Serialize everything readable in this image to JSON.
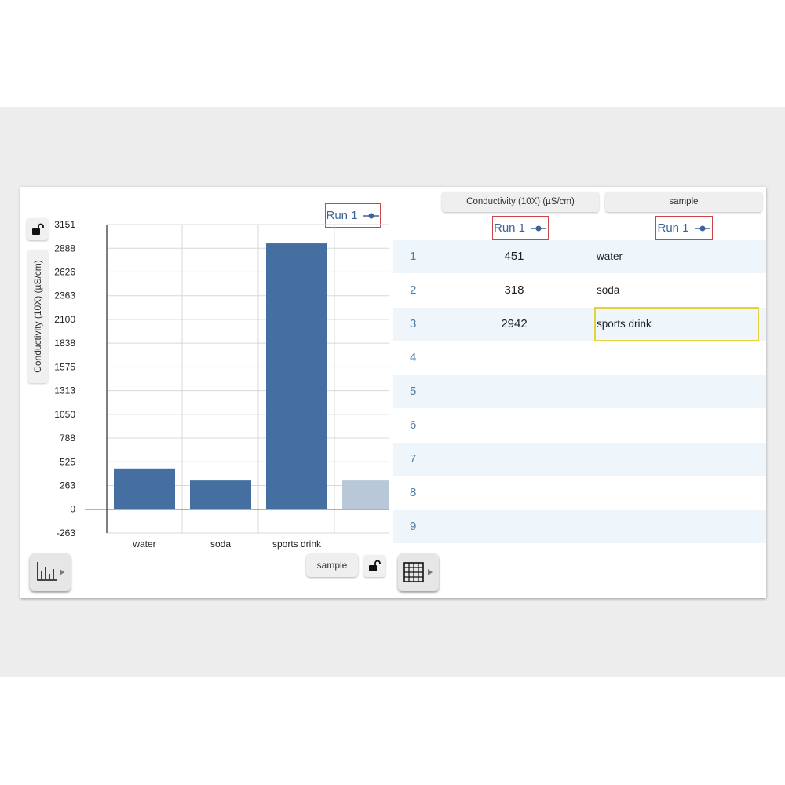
{
  "graph": {
    "y_axis_label": "Conductivity (10X) (µS/cm)",
    "run_label": "Run 1",
    "x_axis_button": "sample"
  },
  "chart_data": {
    "type": "bar",
    "categories": [
      "water",
      "soda",
      "sports drink"
    ],
    "series": [
      {
        "values": [
          451,
          318,
          2942
        ]
      }
    ],
    "partial_bar_value": 318,
    "yticks": [
      3151,
      2888,
      2626,
      2363,
      2100,
      1838,
      1575,
      1313,
      1050,
      788,
      525,
      263,
      0,
      -263
    ],
    "ylim": [
      -263,
      3151
    ],
    "grid": true,
    "bar_color": "#456fa0",
    "partial_bar_color": "#b9c8d8"
  },
  "table": {
    "columns": [
      {
        "header": "Conductivity (10X) (µS/cm)",
        "run_label": "Run 1"
      },
      {
        "header": "sample",
        "run_label": "Run 1"
      }
    ],
    "rows": [
      {
        "num": "1",
        "value": "451",
        "sample": "water"
      },
      {
        "num": "2",
        "value": "318",
        "sample": "soda"
      },
      {
        "num": "3",
        "value": "2942",
        "sample": "sports drink"
      },
      {
        "num": "4",
        "value": "",
        "sample": ""
      },
      {
        "num": "5",
        "value": "",
        "sample": ""
      },
      {
        "num": "6",
        "value": "",
        "sample": ""
      },
      {
        "num": "7",
        "value": "",
        "sample": ""
      },
      {
        "num": "8",
        "value": "",
        "sample": ""
      },
      {
        "num": "9",
        "value": "",
        "sample": ""
      }
    ]
  },
  "icons": {
    "graph_tool": "bar-chart-icon",
    "table_tool": "table-grid-icon",
    "lock": "unlocked-padlock-icon",
    "series_marker": "dot-line-icon"
  },
  "colors": {
    "accent_blue": "#3d6497",
    "run_border": "#c9474b",
    "selection": "#e4d33b",
    "row_alt": "#eef5fb"
  }
}
